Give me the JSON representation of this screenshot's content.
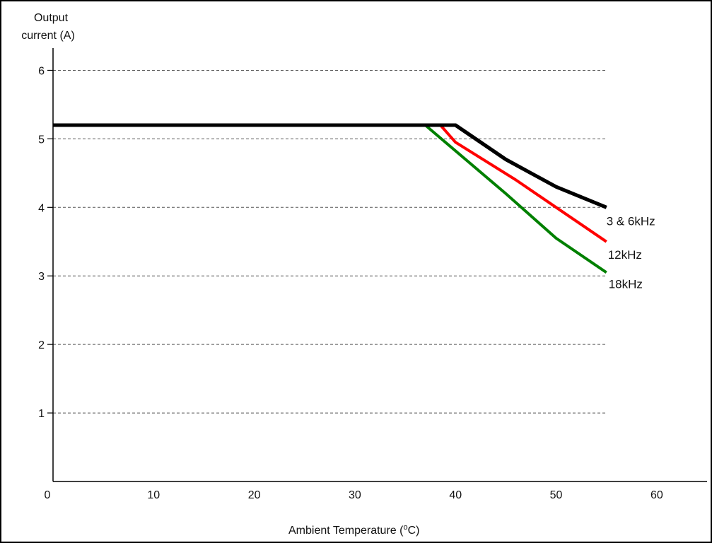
{
  "chart_data": {
    "type": "line",
    "title": "",
    "ylabel_line1": "Output",
    "ylabel_line2": "current (A)",
    "xlabel": "Ambient Temperature (",
    "xlabel_sup": "o",
    "xlabel_end": "C)",
    "xlim": [
      0,
      65
    ],
    "ylim": [
      0,
      6.5
    ],
    "x_ticks": [
      0,
      10,
      20,
      30,
      40,
      50,
      60
    ],
    "y_ticks": [
      1,
      2,
      3,
      4,
      5,
      6
    ],
    "grid": "dashed horizontal",
    "series": [
      {
        "name": "3 & 6kHz",
        "color": "#000000",
        "points": [
          [
            0,
            5.2
          ],
          [
            40,
            5.2
          ],
          [
            45,
            4.7
          ],
          [
            50,
            4.3
          ],
          [
            55,
            4.0
          ]
        ]
      },
      {
        "name": "12kHz",
        "color": "#ff0000",
        "points": [
          [
            0,
            5.2
          ],
          [
            38.5,
            5.2
          ],
          [
            40,
            4.95
          ],
          [
            46,
            4.4
          ],
          [
            50,
            4.0
          ],
          [
            55,
            3.5
          ]
        ]
      },
      {
        "name": "18kHz",
        "color": "#008000",
        "points": [
          [
            0,
            5.2
          ],
          [
            37,
            5.2
          ],
          [
            45,
            4.2
          ],
          [
            50,
            3.55
          ],
          [
            55,
            3.05
          ]
        ]
      }
    ]
  }
}
